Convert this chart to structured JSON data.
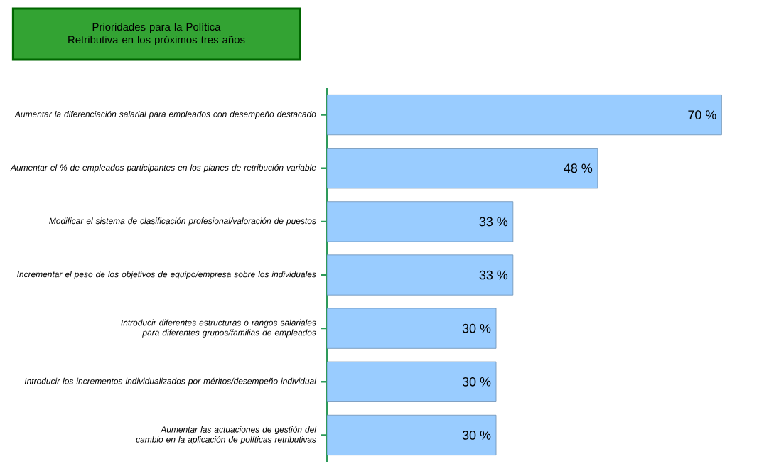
{
  "chart_data": {
    "type": "bar",
    "orientation": "horizontal",
    "title": "Prioridades para la Política Retributiva en los próximos tres años",
    "categories": [
      "Aumentar la diferenciación salarial para empleados con desempeño destacado",
      "Aumentar el % de empleados participantes en los planes de retribución variable",
      "Modificar el sistema de clasificación profesional/valoración de puestos",
      "Incrementar el peso de los objetivos de equipo/empresa sobre los individuales",
      "Introducir diferentes estructuras o rangos salariales para diferentes grupos/familias de empleados",
      "Introducir los incrementos individualizados por méritos/desempeño individual",
      "Aumentar las actuaciones de gestión del cambio en la aplicación de políticas retributivas"
    ],
    "values": [
      70,
      48,
      33,
      33,
      30,
      30,
      30
    ],
    "value_labels": [
      "70 %",
      "48 %",
      "33 %",
      "33 %",
      "30 %",
      "30 %",
      "30 %"
    ],
    "color": "#99ccff"
  }
}
